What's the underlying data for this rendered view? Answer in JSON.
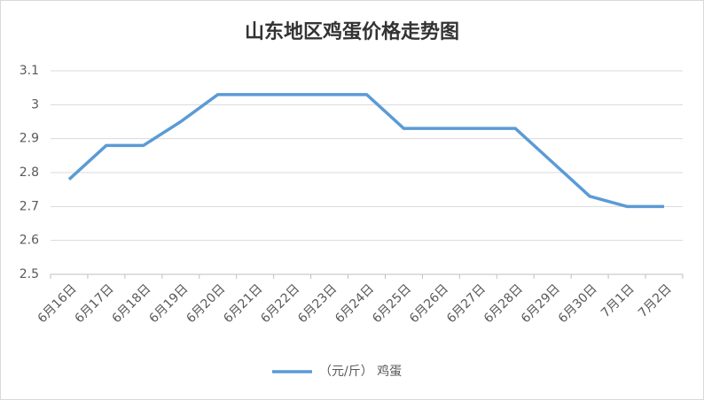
{
  "chart_data": {
    "type": "line",
    "title": "山东地区鸡蛋价格走势图",
    "categories": [
      "6月16日",
      "6月17日",
      "6月18日",
      "6月19日",
      "6月20日",
      "6月21日",
      "6月22日",
      "6月23日",
      "6月24日",
      "6月25日",
      "6月26日",
      "6月27日",
      "6月28日",
      "6月29日",
      "6月30日",
      "7月1日",
      "7月2日"
    ],
    "series": [
      {
        "name": "（元/斤） 鸡蛋",
        "color": "#5b9bd5",
        "values": [
          2.78,
          2.88,
          2.88,
          2.95,
          3.03,
          3.03,
          3.03,
          3.03,
          3.03,
          2.93,
          2.93,
          2.93,
          2.93,
          2.83,
          2.73,
          2.7,
          2.7
        ]
      }
    ],
    "ylim": [
      2.5,
      3.1
    ],
    "yticks": [
      2.5,
      2.6,
      2.7,
      2.8,
      2.9,
      3,
      3.1
    ],
    "grid": true,
    "legend": "bottom"
  }
}
